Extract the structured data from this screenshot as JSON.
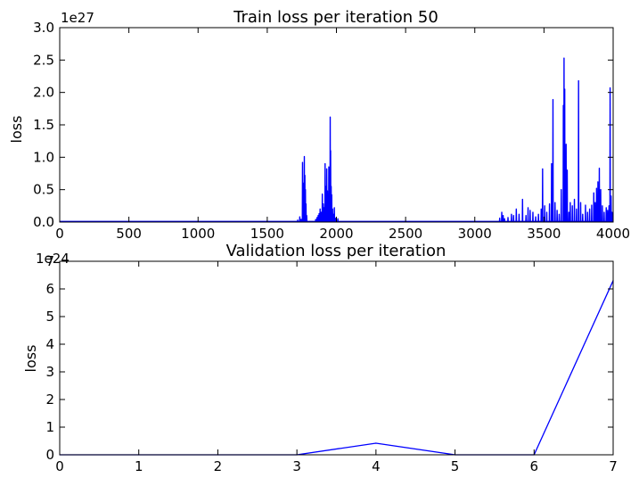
{
  "chart_data": [
    {
      "type": "line",
      "title": "Train loss per iteration 50",
      "xlabel": "",
      "ylabel": "loss",
      "exponent_label": "1e27",
      "scale": 1e+27,
      "xlim": [
        0,
        4000
      ],
      "ylim": [
        0,
        3.0
      ],
      "x_ticks": [
        0,
        500,
        1000,
        1500,
        2000,
        2500,
        3000,
        3500,
        4000
      ],
      "y_ticks": [
        "0.0",
        "0.5",
        "1.0",
        "1.5",
        "2.0",
        "2.5",
        "3.0"
      ],
      "color": "#0000ff",
      "grid": false,
      "series": [
        {
          "name": "train loss",
          "baseline": 0.01,
          "spikes": [
            [
              1720,
              0.03
            ],
            [
              1735,
              0.08
            ],
            [
              1745,
              0.04
            ],
            [
              1755,
              0.92
            ],
            [
              1762,
              0.6
            ],
            [
              1768,
              1.01
            ],
            [
              1772,
              0.72
            ],
            [
              1776,
              0.5
            ],
            [
              1780,
              0.28
            ],
            [
              1785,
              0.1
            ],
            [
              1850,
              0.04
            ],
            [
              1860,
              0.07
            ],
            [
              1868,
              0.1
            ],
            [
              1875,
              0.13
            ],
            [
              1882,
              0.2
            ],
            [
              1890,
              0.15
            ],
            [
              1898,
              0.43
            ],
            [
              1905,
              0.28
            ],
            [
              1912,
              0.22
            ],
            [
              1918,
              0.9
            ],
            [
              1925,
              0.55
            ],
            [
              1930,
              0.82
            ],
            [
              1935,
              0.48
            ],
            [
              1940,
              0.3
            ],
            [
              1945,
              0.85
            ],
            [
              1950,
              0.4
            ],
            [
              1955,
              1.62
            ],
            [
              1958,
              1.1
            ],
            [
              1962,
              0.55
            ],
            [
              1966,
              0.42
            ],
            [
              1972,
              0.2
            ],
            [
              1978,
              0.12
            ],
            [
              1985,
              0.22
            ],
            [
              1995,
              0.06
            ],
            [
              2010,
              0.05
            ],
            [
              3180,
              0.06
            ],
            [
              3195,
              0.15
            ],
            [
              3205,
              0.1
            ],
            [
              3215,
              0.05
            ],
            [
              3240,
              0.07
            ],
            [
              3265,
              0.12
            ],
            [
              3280,
              0.1
            ],
            [
              3300,
              0.2
            ],
            [
              3320,
              0.12
            ],
            [
              3345,
              0.35
            ],
            [
              3370,
              0.1
            ],
            [
              3385,
              0.22
            ],
            [
              3400,
              0.18
            ],
            [
              3420,
              0.15
            ],
            [
              3440,
              0.08
            ],
            [
              3460,
              0.12
            ],
            [
              3480,
              0.2
            ],
            [
              3490,
              0.82
            ],
            [
              3505,
              0.25
            ],
            [
              3520,
              0.15
            ],
            [
              3540,
              0.28
            ],
            [
              3555,
              0.9
            ],
            [
              3565,
              1.89
            ],
            [
              3580,
              0.3
            ],
            [
              3595,
              0.18
            ],
            [
              3610,
              0.12
            ],
            [
              3625,
              0.5
            ],
            [
              3640,
              1.8
            ],
            [
              3645,
              2.53
            ],
            [
              3650,
              2.05
            ],
            [
              3660,
              1.2
            ],
            [
              3668,
              0.8
            ],
            [
              3680,
              0.15
            ],
            [
              3690,
              0.3
            ],
            [
              3705,
              0.25
            ],
            [
              3720,
              0.35
            ],
            [
              3735,
              0.2
            ],
            [
              3750,
              2.18
            ],
            [
              3765,
              0.3
            ],
            [
              3780,
              0.12
            ],
            [
              3800,
              0.26
            ],
            [
              3815,
              0.15
            ],
            [
              3830,
              0.2
            ],
            [
              3845,
              0.26
            ],
            [
              3860,
              0.45
            ],
            [
              3870,
              0.3
            ],
            [
              3880,
              0.52
            ],
            [
              3890,
              0.62
            ],
            [
              3900,
              0.83
            ],
            [
              3910,
              0.5
            ],
            [
              3922,
              0.25
            ],
            [
              3935,
              0.15
            ],
            [
              3950,
              0.22
            ],
            [
              3960,
              0.18
            ],
            [
              3970,
              0.25
            ],
            [
              3978,
              2.07
            ],
            [
              3985,
              0.4
            ],
            [
              3992,
              0.15
            ]
          ]
        }
      ]
    },
    {
      "type": "line",
      "title": "Validation loss per iteration",
      "xlabel": "",
      "ylabel": "loss",
      "exponent_label": "1e24",
      "scale": 1e+24,
      "xlim": [
        0,
        7
      ],
      "ylim": [
        0,
        7
      ],
      "x_ticks": [
        0,
        1,
        2,
        3,
        4,
        5,
        6,
        7
      ],
      "y_ticks": [
        "0",
        "1",
        "2",
        "3",
        "4",
        "5",
        "6",
        "7"
      ],
      "color": "#0000ff",
      "grid": false,
      "series": [
        {
          "name": "validation loss",
          "x": [
            0,
            1,
            2,
            3,
            4,
            5,
            6,
            7
          ],
          "y": [
            0.0,
            0.0,
            0.0,
            0.0,
            0.42,
            0.0,
            0.0,
            6.3
          ]
        }
      ]
    }
  ]
}
